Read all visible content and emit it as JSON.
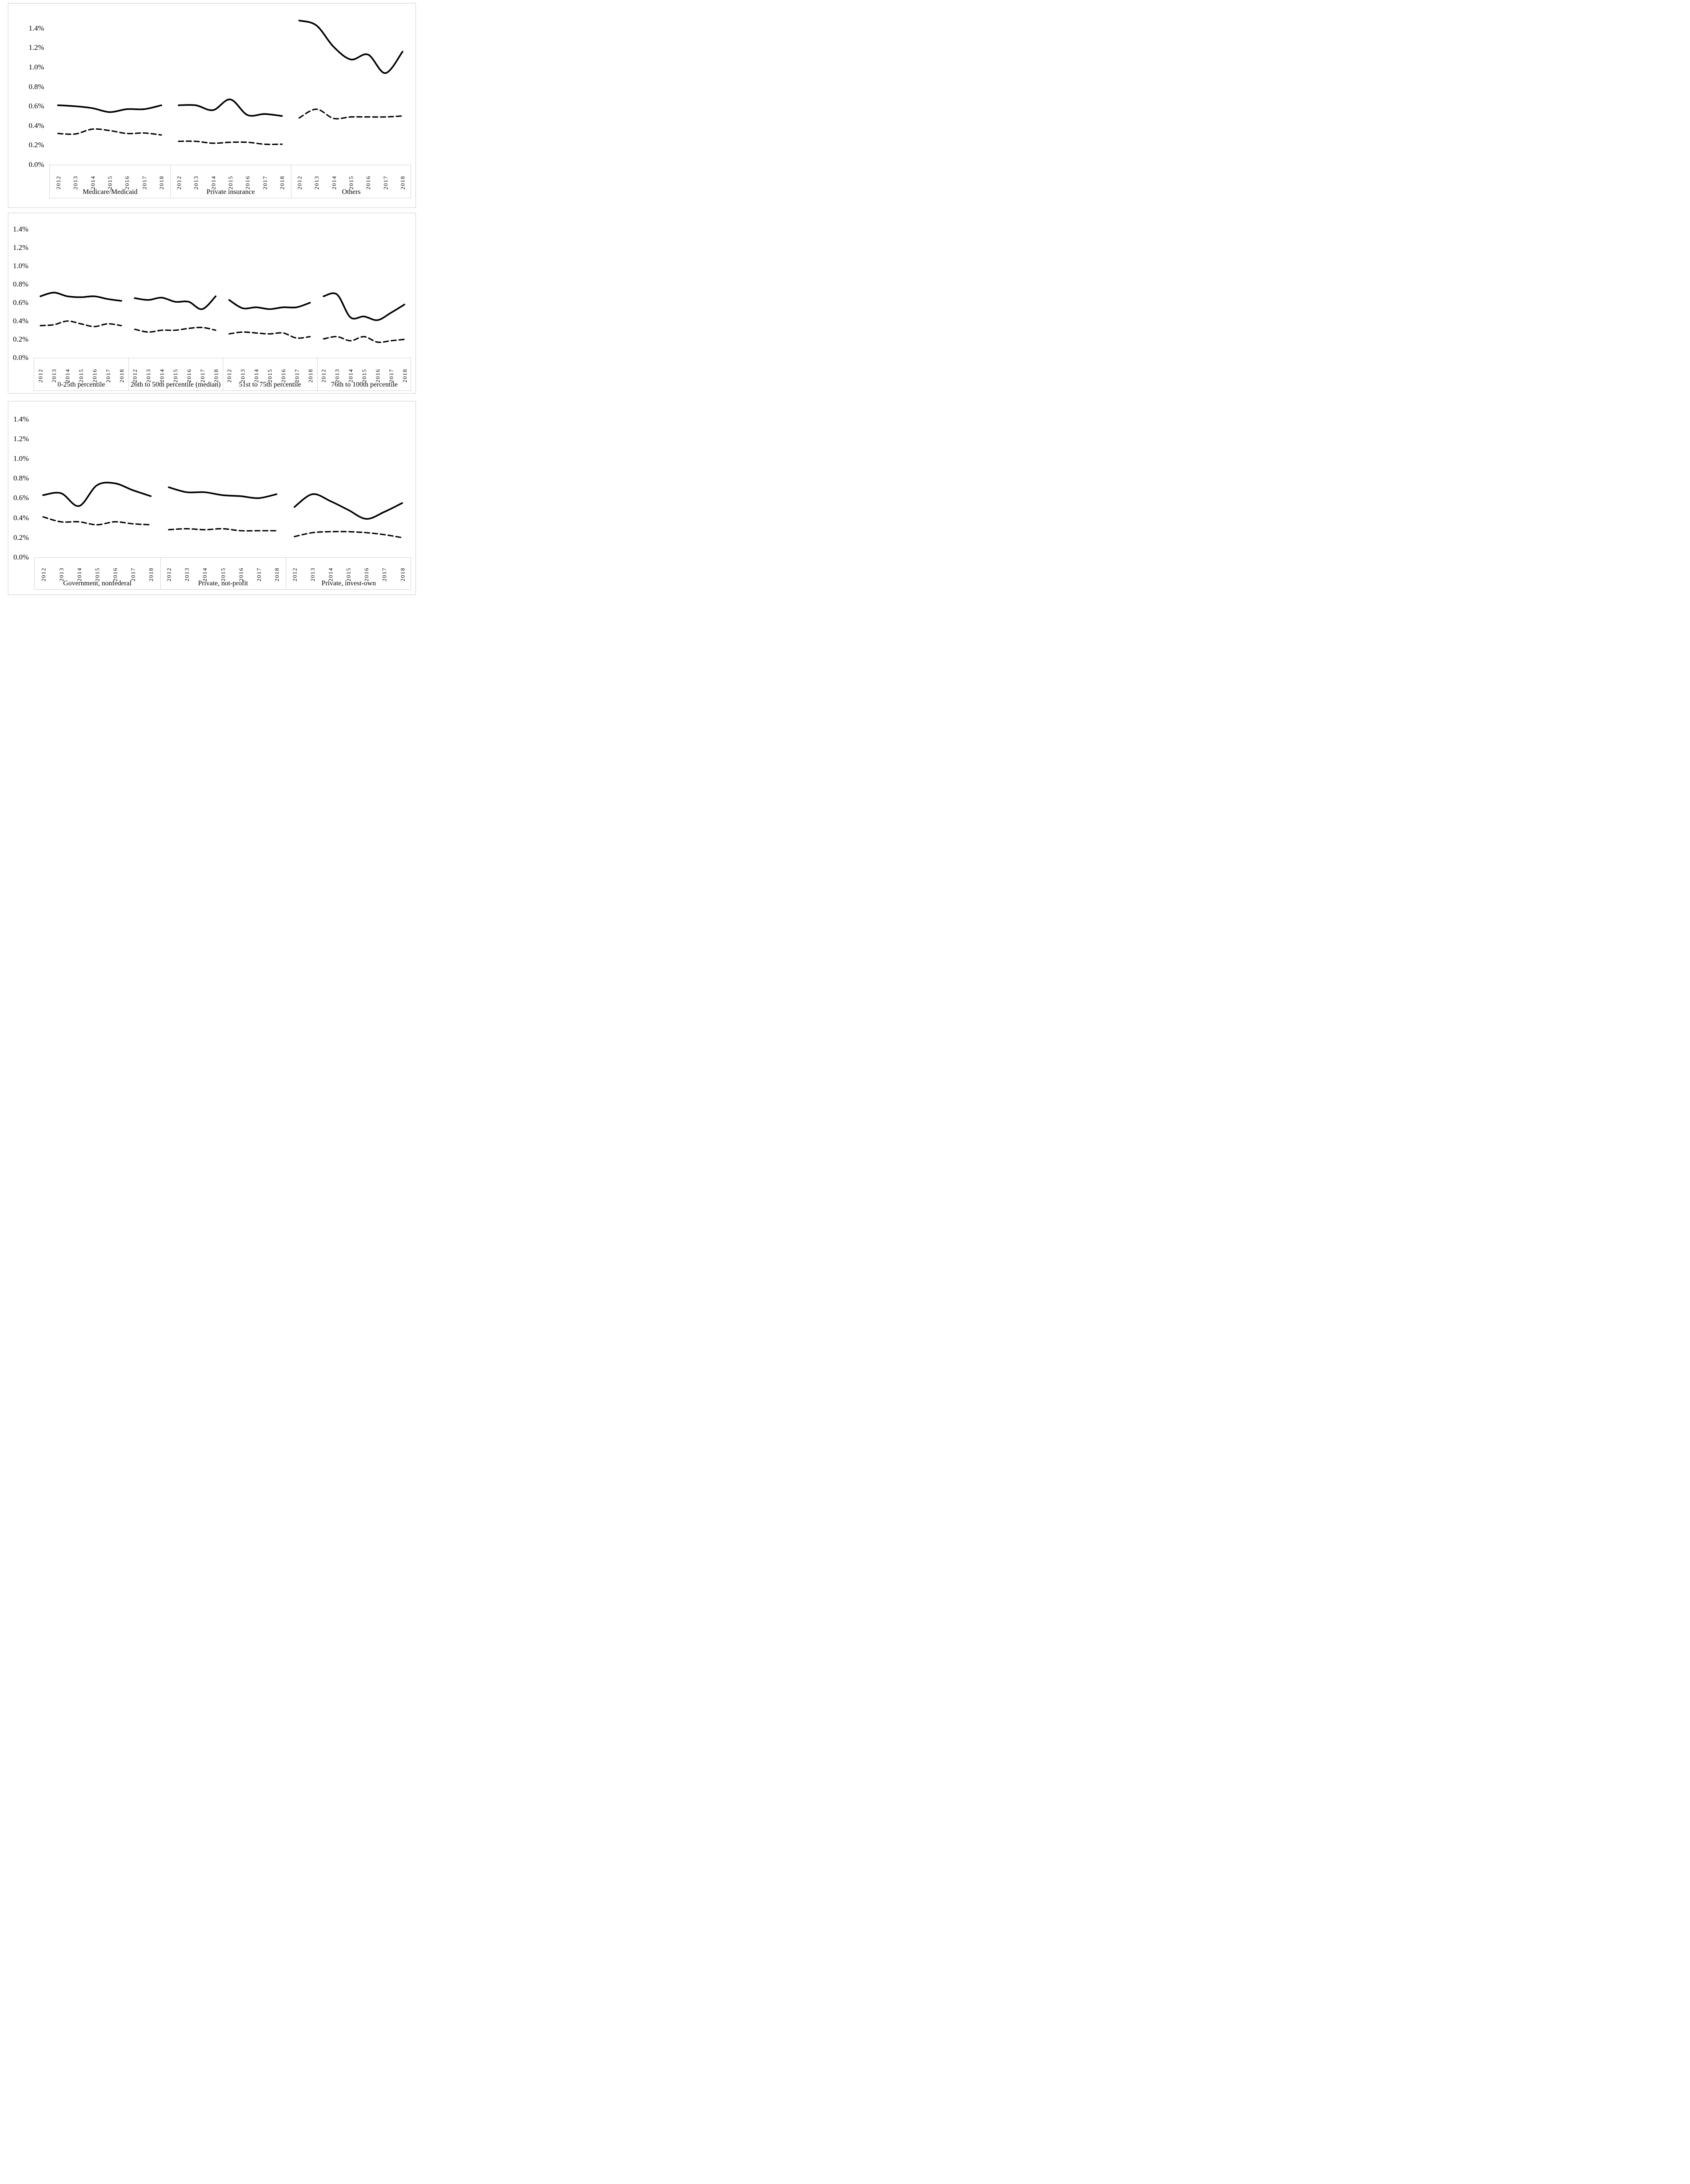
{
  "colors": {
    "line": "#000000",
    "panel_border": "#cdcdcd",
    "axis_box_border": "#d2d2d2",
    "text": "#000000",
    "background": "#ffffff"
  },
  "chart_data": [
    {
      "type": "line",
      "name": "payer-mix",
      "unit": "percent",
      "ylim": [
        0,
        1.4
      ],
      "grid": false,
      "legend": "none",
      "y_tick_labels": [
        "1.4%",
        "1.2%",
        "1.0%",
        "0.8%",
        "0.6%",
        "0.4%",
        "0.2%",
        "0.0%"
      ],
      "x_tick_labels": [
        "2012",
        "2013",
        "2014",
        "2015",
        "2016",
        "2017",
        "2018"
      ],
      "series_styles": [
        {
          "name": "solid",
          "stroke": "solid"
        },
        {
          "name": "dashed",
          "stroke": "dashed"
        }
      ],
      "groups": [
        {
          "label": "Medicare/Medicaid",
          "solid": [
            0.61,
            0.6,
            0.58,
            0.54,
            0.57,
            0.57,
            0.61
          ],
          "dashed": [
            0.32,
            0.315,
            0.365,
            0.35,
            0.32,
            0.325,
            0.305
          ]
        },
        {
          "label": "Private insurance",
          "solid": [
            0.61,
            0.61,
            0.56,
            0.67,
            0.51,
            0.52,
            0.5
          ],
          "dashed": [
            0.24,
            0.24,
            0.22,
            0.23,
            0.23,
            0.21,
            0.21
          ]
        },
        {
          "label": "Others",
          "solid": [
            1.48,
            1.43,
            1.21,
            1.08,
            1.13,
            0.94,
            1.16
          ],
          "dashed": [
            0.48,
            0.57,
            0.475,
            0.49,
            0.49,
            0.49,
            0.5
          ]
        }
      ]
    },
    {
      "type": "line",
      "name": "wage-index-percentiles",
      "unit": "percent",
      "ylim": [
        0,
        1.4
      ],
      "grid": false,
      "legend": "none",
      "y_tick_labels": [
        "1.4%",
        "1.2%",
        "1.0%",
        "0.8%",
        "0.6%",
        "0.4%",
        "0.2%",
        "0.0%"
      ],
      "x_tick_labels": [
        "2012",
        "2013",
        "2014",
        "2015",
        "2016",
        "2017",
        "2018"
      ],
      "series_styles": [
        {
          "name": "solid",
          "stroke": "solid"
        },
        {
          "name": "dashed",
          "stroke": "dashed"
        }
      ],
      "groups": [
        {
          "label": "0-25th percentile",
          "solid": [
            0.67,
            0.71,
            0.67,
            0.66,
            0.67,
            0.64,
            0.62
          ],
          "dashed": [
            0.35,
            0.36,
            0.4,
            0.37,
            0.34,
            0.37,
            0.35
          ]
        },
        {
          "label": "26th to 50th percentile (median)",
          "solid": [
            0.65,
            0.63,
            0.655,
            0.61,
            0.61,
            0.53,
            0.67
          ],
          "dashed": [
            0.31,
            0.28,
            0.3,
            0.3,
            0.32,
            0.33,
            0.3
          ]
        },
        {
          "label": "51st to 75th percentile",
          "solid": [
            0.63,
            0.54,
            0.55,
            0.53,
            0.55,
            0.55,
            0.6
          ],
          "dashed": [
            0.26,
            0.28,
            0.27,
            0.26,
            0.27,
            0.215,
            0.23
          ]
        },
        {
          "label": "76th to 100th percentile",
          "solid": [
            0.67,
            0.69,
            0.44,
            0.45,
            0.41,
            0.49,
            0.58
          ],
          "dashed": [
            0.205,
            0.23,
            0.185,
            0.23,
            0.17,
            0.185,
            0.2
          ]
        }
      ]
    },
    {
      "type": "line",
      "name": "ownership",
      "unit": "percent",
      "ylim": [
        0,
        1.4
      ],
      "grid": false,
      "legend": "none",
      "y_tick_labels": [
        "1.4%",
        "1.2%",
        "1.0%",
        "0.8%",
        "0.6%",
        "0.4%",
        "0.2%",
        "0.0%"
      ],
      "x_tick_labels": [
        "2012",
        "2013",
        "2014",
        "2015",
        "2016",
        "2017",
        "2018"
      ],
      "series_styles": [
        {
          "name": "solid",
          "stroke": "solid"
        },
        {
          "name": "dashed",
          "stroke": "dashed"
        }
      ],
      "groups": [
        {
          "label": "Government, nonfederal",
          "solid": [
            0.63,
            0.65,
            0.52,
            0.73,
            0.75,
            0.68,
            0.62
          ],
          "dashed": [
            0.41,
            0.36,
            0.36,
            0.33,
            0.36,
            0.34,
            0.33
          ]
        },
        {
          "label": "Private, not-profit",
          "solid": [
            0.71,
            0.66,
            0.66,
            0.63,
            0.62,
            0.6,
            0.64
          ],
          "dashed": [
            0.28,
            0.29,
            0.28,
            0.29,
            0.27,
            0.27,
            0.27
          ]
        },
        {
          "label": "Private, invest-own",
          "solid": [
            0.51,
            0.64,
            0.57,
            0.48,
            0.39,
            0.46,
            0.55
          ],
          "dashed": [
            0.21,
            0.25,
            0.26,
            0.26,
            0.25,
            0.23,
            0.2
          ]
        }
      ]
    }
  ]
}
